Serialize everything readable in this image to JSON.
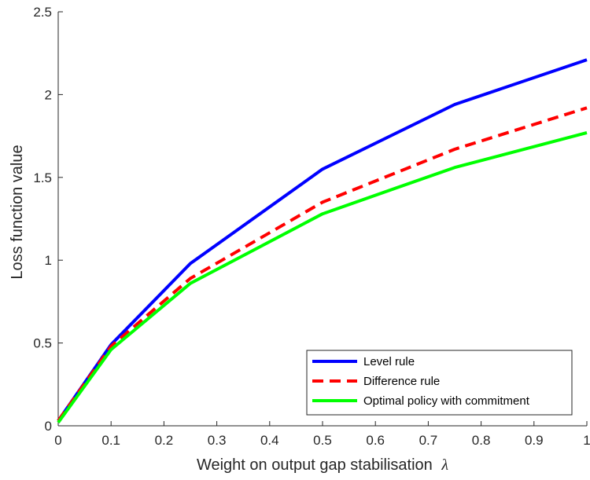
{
  "chart_data": {
    "type": "line",
    "xlabel": "Weight on output gap stabilisation",
    "xlabel_symbol": "λ",
    "ylabel": "Loss function value",
    "xlim": [
      0,
      1
    ],
    "ylim": [
      0,
      2.5
    ],
    "x_ticks": [
      "0",
      "0.1",
      "0.2",
      "0.3",
      "0.4",
      "0.5",
      "0.6",
      "0.7",
      "0.8",
      "0.9",
      "1"
    ],
    "y_ticks": [
      "0",
      "0.5",
      "1",
      "1.5",
      "2",
      "2.5"
    ],
    "x_tick_values": [
      0,
      0.1,
      0.2,
      0.3,
      0.4,
      0.5,
      0.6,
      0.7,
      0.8,
      0.9,
      1
    ],
    "y_tick_values": [
      0,
      0.5,
      1,
      1.5,
      2,
      2.5
    ],
    "grid": false,
    "legend_position": "bottom-right",
    "series": [
      {
        "name": "Level rule",
        "color": "#0000ff",
        "style": "solid",
        "x": [
          0,
          0.1,
          0.25,
          0.5,
          0.75,
          1
        ],
        "y": [
          0.03,
          0.49,
          0.98,
          1.55,
          1.94,
          2.21
        ]
      },
      {
        "name": "Difference rule",
        "color": "#ff0000",
        "style": "dashed",
        "x": [
          0,
          0.1,
          0.25,
          0.5,
          0.75,
          1
        ],
        "y": [
          0.03,
          0.48,
          0.89,
          1.35,
          1.67,
          1.92
        ]
      },
      {
        "name": "Optimal policy with commitment",
        "color": "#00ff00",
        "style": "solid",
        "x": [
          0,
          0.1,
          0.25,
          0.5,
          0.75,
          1
        ],
        "y": [
          0.02,
          0.46,
          0.86,
          1.28,
          1.56,
          1.77
        ]
      }
    ]
  }
}
